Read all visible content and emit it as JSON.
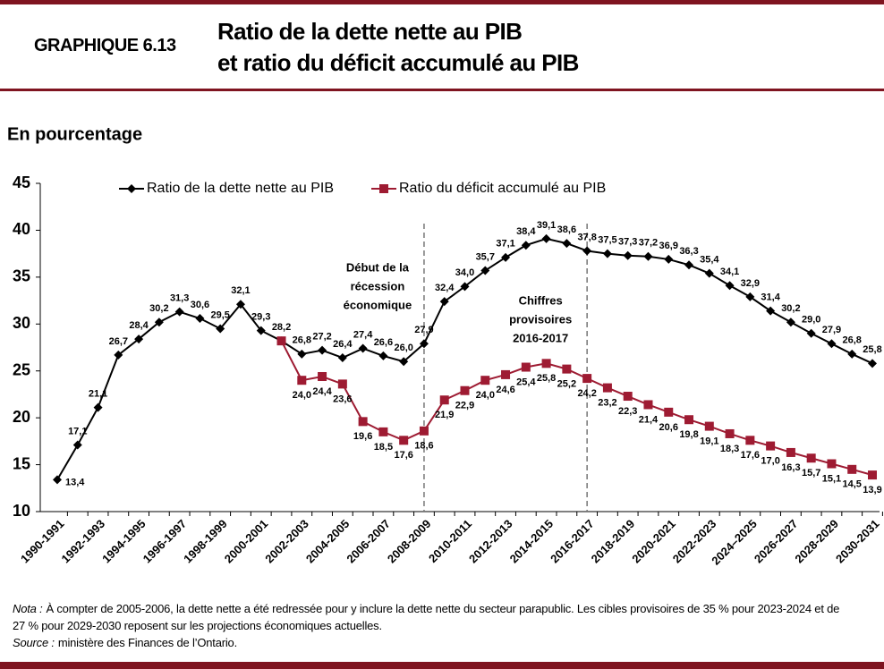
{
  "header": {
    "label": "GRAPHIQUE 6.13",
    "title": [
      "Ratio de la dette nette au PIB",
      "et ratio du déficit accumulé au PIB"
    ]
  },
  "chart_data": {
    "type": "line",
    "subtitle": "En pourcentage",
    "categories": [
      "1990-1991",
      null,
      "1992-1993",
      null,
      "1994-1995",
      null,
      "1996-1997",
      null,
      "1998-1999",
      null,
      "2000-2001",
      null,
      "2002-2003",
      null,
      "2004-2005",
      null,
      "2006-2007",
      null,
      "2008-2009",
      null,
      "2010-2011",
      null,
      "2012-2013",
      null,
      "2014-2015",
      null,
      "2016-2017",
      null,
      "2018-2019",
      null,
      "2020-2021",
      null,
      "2022-2023",
      null,
      "2024–2025",
      null,
      "2026-2027",
      null,
      "2028-2029",
      null,
      "2030-2031"
    ],
    "series": [
      {
        "name": "Ratio de la dette nette au PIB",
        "color": "#000000",
        "marker": "diamond",
        "values": [
          13.4,
          17.1,
          21.1,
          26.7,
          28.4,
          30.2,
          31.3,
          30.6,
          29.5,
          32.1,
          29.3,
          28.2,
          26.8,
          27.2,
          26.4,
          27.4,
          26.6,
          26.0,
          27.9,
          32.4,
          34.0,
          35.7,
          37.1,
          38.4,
          39.1,
          38.6,
          37.8,
          37.5,
          37.3,
          37.2,
          36.9,
          36.3,
          35.4,
          34.1,
          32.9,
          31.4,
          30.2,
          29.0,
          27.9,
          26.8,
          25.8
        ],
        "value_labels": [
          "13,4",
          "17,1",
          "21,1",
          "26,7",
          "28,4",
          "30,2",
          "31,3",
          "30,6",
          "29,5",
          "32,1",
          "29,3",
          "28,2",
          "26,8",
          "27,2",
          "26,4",
          "27,4",
          "26,6",
          "26,0",
          "27,9",
          "32,4",
          "34,0",
          "35,7",
          "37,1",
          "38,4",
          "39,1",
          "38,6",
          "37,8",
          "37,5",
          "37,3",
          "37,2",
          "36,9",
          "36,3",
          "35,4",
          "34,1",
          "32,9",
          "31,4",
          "30,2",
          "29,0",
          "27,9",
          "26,8",
          "25,8"
        ]
      },
      {
        "name": "Ratio du déficit accumulé au PIB",
        "color": "#9e1b32",
        "marker": "square",
        "values": [
          null,
          null,
          null,
          null,
          null,
          null,
          null,
          null,
          null,
          null,
          null,
          28.2,
          24.0,
          24.4,
          23.6,
          19.6,
          18.5,
          17.6,
          18.6,
          21.9,
          22.9,
          24.0,
          24.6,
          25.4,
          25.8,
          25.2,
          24.2,
          23.2,
          22.3,
          21.4,
          20.6,
          19.8,
          19.1,
          18.3,
          17.6,
          17.0,
          16.3,
          15.7,
          15.1,
          14.5,
          13.9
        ],
        "value_labels": [
          null,
          null,
          null,
          null,
          null,
          null,
          null,
          null,
          null,
          null,
          null,
          null,
          "24,0",
          "24,4",
          "23,6",
          "19,6",
          "18,5",
          "17,6",
          "18,6",
          "21,9",
          "22,9",
          "24,0",
          "24,6",
          "25,4",
          "25,8",
          "25,2",
          "24,2",
          "23,2",
          "22,3",
          "21,4",
          "20,6",
          "19,8",
          "19,1",
          "18,3",
          "17,6",
          "17,0",
          "16,3",
          "15,7",
          "15,1",
          "14,5",
          "13,9"
        ]
      }
    ],
    "ylim": [
      10,
      45
    ],
    "yticks": [
      10,
      15,
      20,
      25,
      30,
      35,
      40,
      45
    ],
    "annotations": [
      {
        "x": "2008-2009",
        "lines": [
          "Début de la",
          "récession",
          "économique"
        ]
      },
      {
        "x": "2016-2017",
        "lines": [
          "Chiffres",
          "provisoires",
          "2016-2017"
        ]
      }
    ]
  },
  "notes": [
    {
      "label": "Nota :",
      "text": "À compter de 2005-2006, la dette nette a été redressée pour y inclure la dette nette du secteur parapublic. Les cibles provisoires de 35 % pour 2023-2024 et de 27 % pour 2029-2030 reposent sur les projections économiques actuelles."
    },
    {
      "label": "Source :",
      "text": "ministère des Finances de l’Ontario."
    }
  ]
}
